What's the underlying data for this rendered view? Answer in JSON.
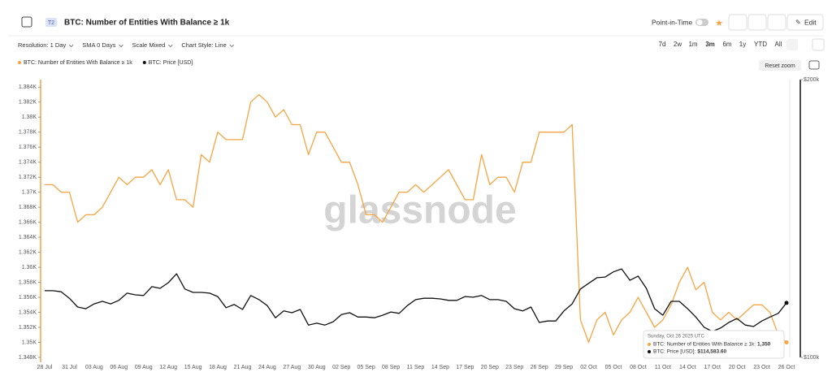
{
  "header": {
    "badge": "T2",
    "title": "BTC: Number of Entities With Balance ≥ 1k",
    "point_in_time": "Point-in-Time",
    "edit": "Edit"
  },
  "toolbar": {
    "controls": [
      "Resolution: 1 Day",
      "SMA 0 Days",
      "Scale Mixed",
      "Chart Style: Line"
    ],
    "ranges": [
      "7d",
      "2w",
      "1m",
      "3m",
      "6m",
      "1y",
      "YTD",
      "All"
    ],
    "reset_zoom": "Reset zoom"
  },
  "chart_data": {
    "type": "line",
    "watermark": "glassnode",
    "categories": [
      "28 Jul",
      null,
      null,
      "31 Jul",
      null,
      null,
      "03 Aug",
      null,
      null,
      "06 Aug",
      null,
      null,
      "09 Aug",
      null,
      null,
      "12 Aug",
      null,
      null,
      "15 Aug",
      null,
      null,
      "18 Aug",
      null,
      null,
      "21 Aug",
      null,
      null,
      "24 Aug",
      null,
      null,
      "27 Aug",
      null,
      null,
      "30 Aug",
      null,
      null,
      "02 Sep",
      null,
      null,
      "05 Sep",
      null,
      null,
      "08 Sep",
      null,
      null,
      "11 Sep",
      null,
      null,
      "14 Sep",
      null,
      null,
      "17 Sep",
      null,
      null,
      "20 Sep",
      null,
      null,
      "23 Sep",
      null,
      null,
      "26 Sep",
      null,
      null,
      "29 Sep",
      null,
      null,
      "02 Oct",
      null,
      null,
      "05 Oct",
      null,
      null,
      "08 Oct",
      null,
      null,
      "11 Oct",
      null,
      null,
      "14 Oct",
      null,
      null,
      "17 Oct",
      null,
      null,
      "20 Oct",
      null,
      null,
      "23 Oct",
      null,
      null,
      "26 Oct"
    ],
    "series": [
      {
        "name": "BTC: Number of Entities With Balance ≥ 1k",
        "color": "#f5a442",
        "values": [
          1371,
          1371,
          1370,
          1370,
          1366,
          1367,
          1367,
          1368,
          1370,
          1372,
          1371,
          1372,
          1372,
          1373,
          1371,
          1373,
          1369,
          1369,
          1368,
          1375,
          1374,
          1378,
          1377,
          1377,
          1377,
          1382,
          1383,
          1382,
          1380,
          1381,
          1379,
          1379,
          1375,
          1378,
          1378,
          1376,
          1374,
          1374,
          1371,
          1367,
          1367,
          1366,
          1368,
          1370,
          1370,
          1371,
          1370,
          1371,
          1372,
          1373,
          1371,
          1369,
          1369,
          1375,
          1371,
          1372,
          1372,
          1370,
          1374,
          1374,
          1378,
          1378,
          1378,
          1378,
          1379,
          1353,
          1350,
          1353,
          1354,
          1351,
          1353,
          1354,
          1356,
          1354,
          1352,
          1353,
          1355,
          1358,
          1360,
          1357,
          1358,
          1354,
          1353,
          1354,
          1353,
          1354,
          1355,
          1355,
          1354,
          1351,
          1350
        ]
      },
      {
        "name": "BTC: Price [USD]",
        "color": "#111111",
        "axis": "y2",
        "values": [
          118100,
          118100,
          117800,
          115900,
          113400,
          112900,
          114300,
          115000,
          114300,
          115300,
          117400,
          116900,
          116700,
          119300,
          118800,
          120500,
          123200,
          118600,
          117600,
          117600,
          117400,
          116400,
          113200,
          114100,
          112700,
          116700,
          115500,
          113800,
          110400,
          112300,
          111800,
          112700,
          108400,
          108900,
          108400,
          109300,
          111300,
          111800,
          110600,
          110600,
          110400,
          111100,
          112000,
          111600,
          113800,
          115500,
          115900,
          115900,
          115700,
          115300,
          115300,
          116400,
          116200,
          116700,
          115500,
          115500,
          115000,
          112900,
          112300,
          113400,
          109100,
          109500,
          109500,
          112300,
          114300,
          118600,
          120300,
          122000,
          122200,
          123800,
          124700,
          121200,
          122500,
          118800,
          112900,
          111100,
          115000,
          115000,
          112900,
          110600,
          107800,
          106700,
          107600,
          109100,
          110200,
          108400,
          108000,
          109500,
          110600,
          111600,
          114583.6
        ]
      }
    ],
    "ylim": [
      1348,
      1385
    ],
    "yticks": [
      {
        "value": 1348,
        "label": "1.348K"
      },
      {
        "value": 1350,
        "label": "1.35K"
      },
      {
        "value": 1352,
        "label": "1.352K"
      },
      {
        "value": 1354,
        "label": "1.354K"
      },
      {
        "value": 1356,
        "label": "1.356K"
      },
      {
        "value": 1358,
        "label": "1.358K"
      },
      {
        "value": 1360,
        "label": "1.36K"
      },
      {
        "value": 1362,
        "label": "1.362K"
      },
      {
        "value": 1364,
        "label": "1.364K"
      },
      {
        "value": 1366,
        "label": "1.366K"
      },
      {
        "value": 1368,
        "label": "1.368K"
      },
      {
        "value": 1370,
        "label": "1.37K"
      },
      {
        "value": 1372,
        "label": "1.372K"
      },
      {
        "value": 1374,
        "label": "1.374K"
      },
      {
        "value": 1376,
        "label": "1.376K"
      },
      {
        "value": 1378,
        "label": "1.378K"
      },
      {
        "value": 1380,
        "label": "1.38K"
      },
      {
        "value": 1382,
        "label": "1.382K"
      },
      {
        "value": 1384,
        "label": "1.384K"
      }
    ],
    "y2lim": [
      100000,
      200000
    ],
    "y2log": true,
    "y2ticks": [
      {
        "value": 100000,
        "label": "$100k"
      },
      {
        "value": 200000,
        "label": "$200k"
      }
    ],
    "grid": false,
    "tooltip": {
      "date": "Sunday, Oct 26 2025 UTC",
      "rows": [
        {
          "label": "BTC: Number of Entities With Balance ≥ 1k:",
          "value": "1,350"
        },
        {
          "label": "BTC: Price [USD]:",
          "value": "$114,583.60"
        }
      ]
    }
  }
}
